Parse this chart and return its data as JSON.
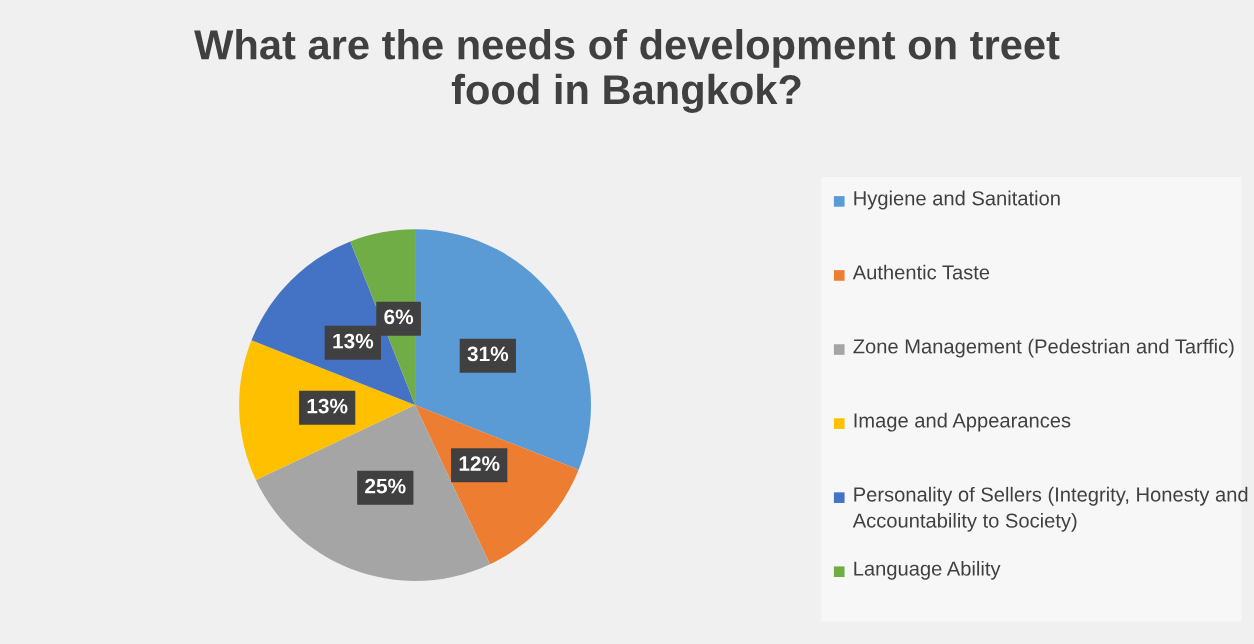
{
  "chart_data": {
    "type": "pie",
    "title": "What are the needs of development on treet food in Bangkok?",
    "categories": [
      "Hygiene and Sanitation",
      "Authentic Taste",
      "Zone Management (Pedestrian and Tarffic)",
      "Image and Appearances",
      "Personality of Sellers (Integrity, Honesty and Accountability to Society)",
      "Language Ability"
    ],
    "values": [
      31,
      12,
      25,
      13,
      13,
      6
    ],
    "colors": [
      "#5b9bd5",
      "#ed7d31",
      "#a5a5a5",
      "#ffc000",
      "#4472c4",
      "#70ad47"
    ],
    "value_labels": [
      "31%",
      "12%",
      "25%",
      "13%",
      "13%",
      "6%"
    ],
    "legend": "right"
  }
}
